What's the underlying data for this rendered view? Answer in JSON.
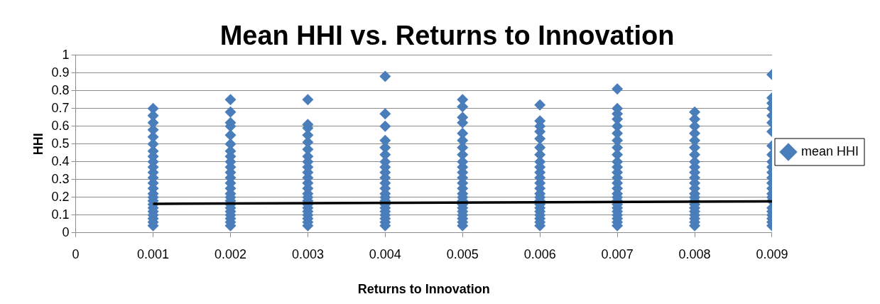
{
  "chart_data": {
    "type": "scatter",
    "title": "Mean HHI vs. Returns to Innovation",
    "xlabel": "Returns to Innovation",
    "ylabel": "HHI",
    "xlim": [
      0,
      0.009
    ],
    "xticks": [
      0,
      0.001,
      0.002,
      0.003,
      0.004,
      0.005,
      0.006,
      0.007,
      0.008,
      0.009
    ],
    "ylim": [
      0,
      1
    ],
    "yticks": [
      0,
      0.1,
      0.2,
      0.3,
      0.4,
      0.5,
      0.6,
      0.7,
      0.8,
      0.9,
      1
    ],
    "grid": "y",
    "legend": "right",
    "series": [
      {
        "name": "mean HHI",
        "marker": "diamond",
        "color": "#4a7ebb",
        "x": [
          0.001,
          0.001,
          0.001,
          0.001,
          0.001,
          0.001,
          0.001,
          0.001,
          0.001,
          0.001,
          0.001,
          0.001,
          0.001,
          0.001,
          0.001,
          0.001,
          0.001,
          0.001,
          0.001,
          0.001,
          0.001,
          0.001,
          0.001,
          0.001,
          0.002,
          0.002,
          0.002,
          0.002,
          0.002,
          0.002,
          0.002,
          0.002,
          0.002,
          0.002,
          0.002,
          0.002,
          0.002,
          0.002,
          0.002,
          0.002,
          0.002,
          0.002,
          0.002,
          0.002,
          0.002,
          0.002,
          0.002,
          0.002,
          0.003,
          0.003,
          0.003,
          0.003,
          0.003,
          0.003,
          0.003,
          0.003,
          0.003,
          0.003,
          0.003,
          0.003,
          0.003,
          0.003,
          0.003,
          0.003,
          0.003,
          0.003,
          0.003,
          0.003,
          0.003,
          0.003,
          0.003,
          0.004,
          0.004,
          0.004,
          0.004,
          0.004,
          0.004,
          0.004,
          0.004,
          0.004,
          0.004,
          0.004,
          0.004,
          0.004,
          0.004,
          0.004,
          0.004,
          0.004,
          0.004,
          0.004,
          0.004,
          0.004,
          0.004,
          0.005,
          0.005,
          0.005,
          0.005,
          0.005,
          0.005,
          0.005,
          0.005,
          0.005,
          0.005,
          0.005,
          0.005,
          0.005,
          0.005,
          0.005,
          0.005,
          0.005,
          0.005,
          0.005,
          0.005,
          0.005,
          0.005,
          0.005,
          0.005,
          0.006,
          0.006,
          0.006,
          0.006,
          0.006,
          0.006,
          0.006,
          0.006,
          0.006,
          0.006,
          0.006,
          0.006,
          0.006,
          0.006,
          0.006,
          0.006,
          0.006,
          0.006,
          0.006,
          0.006,
          0.006,
          0.006,
          0.006,
          0.007,
          0.007,
          0.007,
          0.007,
          0.007,
          0.007,
          0.007,
          0.007,
          0.007,
          0.007,
          0.007,
          0.007,
          0.007,
          0.007,
          0.007,
          0.007,
          0.007,
          0.007,
          0.007,
          0.007,
          0.007,
          0.007,
          0.007,
          0.007,
          0.007,
          0.008,
          0.008,
          0.008,
          0.008,
          0.008,
          0.008,
          0.008,
          0.008,
          0.008,
          0.008,
          0.008,
          0.008,
          0.008,
          0.008,
          0.008,
          0.008,
          0.008,
          0.008,
          0.008,
          0.008,
          0.008,
          0.008,
          0.008,
          0.009,
          0.009,
          0.009,
          0.009,
          0.009,
          0.009,
          0.009,
          0.009,
          0.009,
          0.009,
          0.009,
          0.009,
          0.009,
          0.009,
          0.009,
          0.009,
          0.009,
          0.009,
          0.009,
          0.009,
          0.009,
          0.009,
          0.009,
          0.009
        ],
        "values": [
          0.04,
          0.06,
          0.08,
          0.1,
          0.12,
          0.14,
          0.16,
          0.18,
          0.2,
          0.22,
          0.25,
          0.28,
          0.31,
          0.34,
          0.37,
          0.4,
          0.43,
          0.46,
          0.5,
          0.54,
          0.58,
          0.62,
          0.66,
          0.7,
          0.04,
          0.06,
          0.08,
          0.1,
          0.12,
          0.14,
          0.16,
          0.18,
          0.2,
          0.22,
          0.25,
          0.28,
          0.31,
          0.34,
          0.37,
          0.4,
          0.43,
          0.46,
          0.5,
          0.55,
          0.6,
          0.62,
          0.68,
          0.75,
          0.04,
          0.06,
          0.08,
          0.1,
          0.12,
          0.14,
          0.16,
          0.18,
          0.2,
          0.22,
          0.25,
          0.28,
          0.31,
          0.34,
          0.37,
          0.4,
          0.43,
          0.47,
          0.51,
          0.55,
          0.59,
          0.61,
          0.75,
          0.04,
          0.06,
          0.08,
          0.1,
          0.12,
          0.14,
          0.16,
          0.18,
          0.2,
          0.22,
          0.25,
          0.28,
          0.31,
          0.34,
          0.37,
          0.4,
          0.44,
          0.48,
          0.52,
          0.6,
          0.67,
          0.88,
          0.04,
          0.06,
          0.08,
          0.1,
          0.12,
          0.14,
          0.16,
          0.18,
          0.2,
          0.22,
          0.25,
          0.28,
          0.31,
          0.34,
          0.37,
          0.4,
          0.44,
          0.48,
          0.52,
          0.56,
          0.62,
          0.65,
          0.71,
          0.75,
          0.04,
          0.06,
          0.08,
          0.1,
          0.12,
          0.14,
          0.16,
          0.18,
          0.2,
          0.22,
          0.25,
          0.28,
          0.31,
          0.34,
          0.37,
          0.4,
          0.44,
          0.48,
          0.53,
          0.57,
          0.6,
          0.63,
          0.72,
          0.04,
          0.06,
          0.08,
          0.1,
          0.12,
          0.14,
          0.16,
          0.18,
          0.2,
          0.22,
          0.25,
          0.28,
          0.31,
          0.34,
          0.37,
          0.4,
          0.44,
          0.48,
          0.52,
          0.56,
          0.6,
          0.64,
          0.67,
          0.7,
          0.81,
          0.04,
          0.06,
          0.08,
          0.1,
          0.12,
          0.14,
          0.16,
          0.18,
          0.2,
          0.22,
          0.25,
          0.28,
          0.31,
          0.34,
          0.37,
          0.4,
          0.44,
          0.48,
          0.52,
          0.56,
          0.6,
          0.64,
          0.68,
          0.04,
          0.06,
          0.08,
          0.1,
          0.12,
          0.14,
          0.18,
          0.2,
          0.22,
          0.25,
          0.28,
          0.31,
          0.34,
          0.37,
          0.4,
          0.44,
          0.49,
          0.57,
          0.62,
          0.66,
          0.7,
          0.73,
          0.76,
          0.89
        ]
      },
      {
        "type": "line",
        "marker": "none",
        "color": "#000000",
        "x": [
          0.001,
          0.009
        ],
        "values": [
          0.163,
          0.177
        ]
      }
    ]
  }
}
